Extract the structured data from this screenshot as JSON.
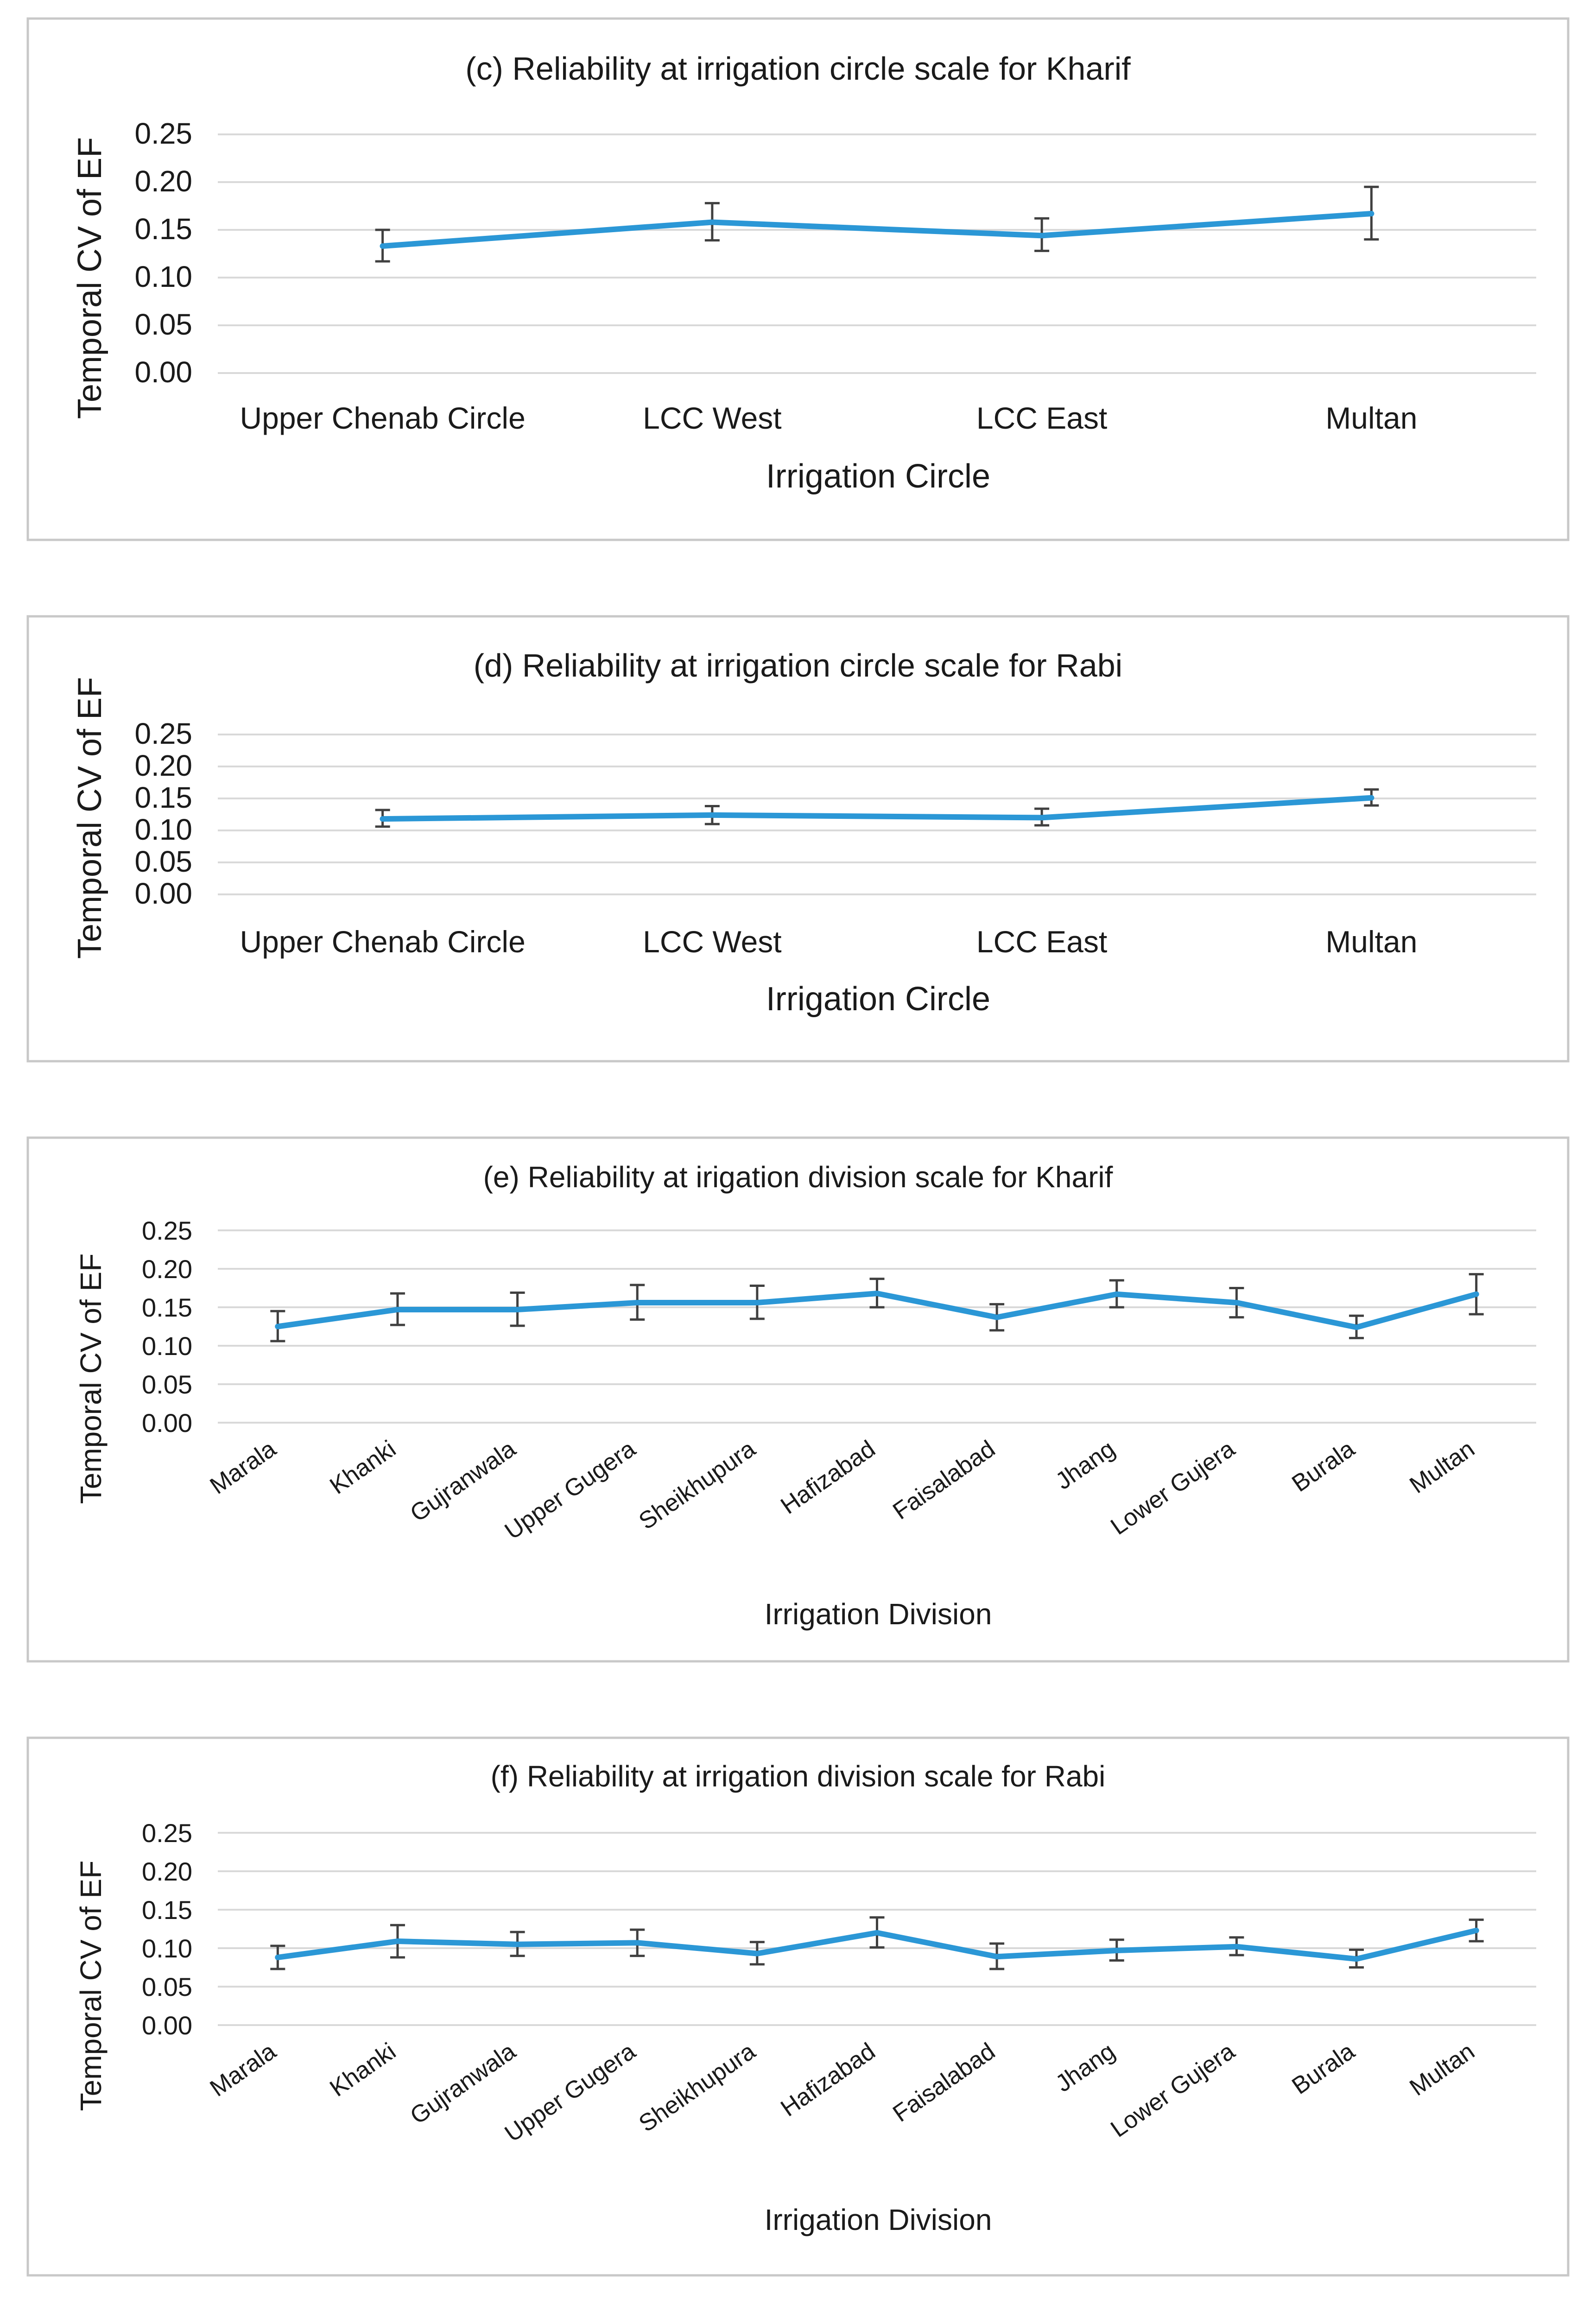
{
  "chart_data": [
    {
      "type": "line",
      "title": "(c) Reliability at irrigation circle scale for Kharif",
      "xlabel": "Irrigation Circle",
      "ylabel": "Temporal CV of EF",
      "ylim": [
        0,
        0.25
      ],
      "yticks": [
        "0.25",
        "0.20",
        "0.15",
        "0.10",
        "0.05",
        "0.00"
      ],
      "categories": [
        "Upper Chenab Circle",
        "LCC West",
        "LCC East",
        "Multan"
      ],
      "values": [
        0.133,
        0.158,
        0.144,
        0.167
      ],
      "err_low": [
        0.117,
        0.139,
        0.128,
        0.14
      ],
      "err_high": [
        0.15,
        0.178,
        0.162,
        0.195
      ],
      "grid": true
    },
    {
      "type": "line",
      "title": "(d) Reliability at irrigation circle scale for Rabi",
      "xlabel": "Irrigation Circle",
      "ylabel": "Temporal CV of EF",
      "ylim": [
        0,
        0.25
      ],
      "yticks": [
        "0.25",
        "0.20",
        "0.15",
        "0.10",
        "0.05",
        "0.00"
      ],
      "categories": [
        "Upper Chenab Circle",
        "LCC West",
        "LCC East",
        "Multan"
      ],
      "values": [
        0.118,
        0.124,
        0.12,
        0.151
      ],
      "err_low": [
        0.106,
        0.11,
        0.108,
        0.139
      ],
      "err_high": [
        0.132,
        0.138,
        0.134,
        0.164
      ],
      "grid": true
    },
    {
      "type": "line",
      "title": "(e) Reliability at irigation division scale for Kharif",
      "xlabel": "Irrigation Division",
      "ylabel": "Temporal CV of EF",
      "ylim": [
        0,
        0.25
      ],
      "yticks": [
        "0.25",
        "0.20",
        "0.15",
        "0.10",
        "0.05",
        "0.00"
      ],
      "categories": [
        "Marala",
        "Khanki",
        "Gujranwala",
        "Upper Gugera",
        "Sheikhupura",
        "Hafizabad",
        "Faisalabad",
        "Jhang",
        "Lower Gujera",
        "Burala",
        "Multan"
      ],
      "values": [
        0.125,
        0.147,
        0.147,
        0.156,
        0.156,
        0.168,
        0.137,
        0.167,
        0.156,
        0.124,
        0.167
      ],
      "err_low": [
        0.106,
        0.127,
        0.126,
        0.134,
        0.135,
        0.15,
        0.12,
        0.15,
        0.137,
        0.11,
        0.141
      ],
      "err_high": [
        0.145,
        0.168,
        0.169,
        0.179,
        0.178,
        0.187,
        0.154,
        0.185,
        0.175,
        0.139,
        0.193
      ],
      "grid": true
    },
    {
      "type": "line",
      "title": "(f) Reliability at irrigation division scale for Rabi",
      "xlabel": "Irrigation Division",
      "ylabel": "Temporal CV of EF",
      "ylim": [
        0,
        0.25
      ],
      "yticks": [
        "0.25",
        "0.20",
        "0.15",
        "0.10",
        "0.05",
        "0.00"
      ],
      "categories": [
        "Marala",
        "Khanki",
        "Gujranwala",
        "Upper Gugera",
        "Sheikhupura",
        "Hafizabad",
        "Faisalabad",
        "Jhang",
        "Lower Gujera",
        "Burala",
        "Multan"
      ],
      "values": [
        0.088,
        0.109,
        0.105,
        0.107,
        0.093,
        0.12,
        0.089,
        0.097,
        0.102,
        0.086,
        0.123
      ],
      "err_low": [
        0.073,
        0.088,
        0.09,
        0.09,
        0.079,
        0.101,
        0.073,
        0.084,
        0.091,
        0.075,
        0.109
      ],
      "err_high": [
        0.103,
        0.13,
        0.121,
        0.124,
        0.108,
        0.14,
        0.106,
        0.111,
        0.114,
        0.098,
        0.137
      ],
      "grid": true
    }
  ],
  "colors": {
    "series": "#2b97d6",
    "error_bar": "#404040",
    "grid": "#d9d9d9",
    "frame": "#c8c8c8"
  }
}
